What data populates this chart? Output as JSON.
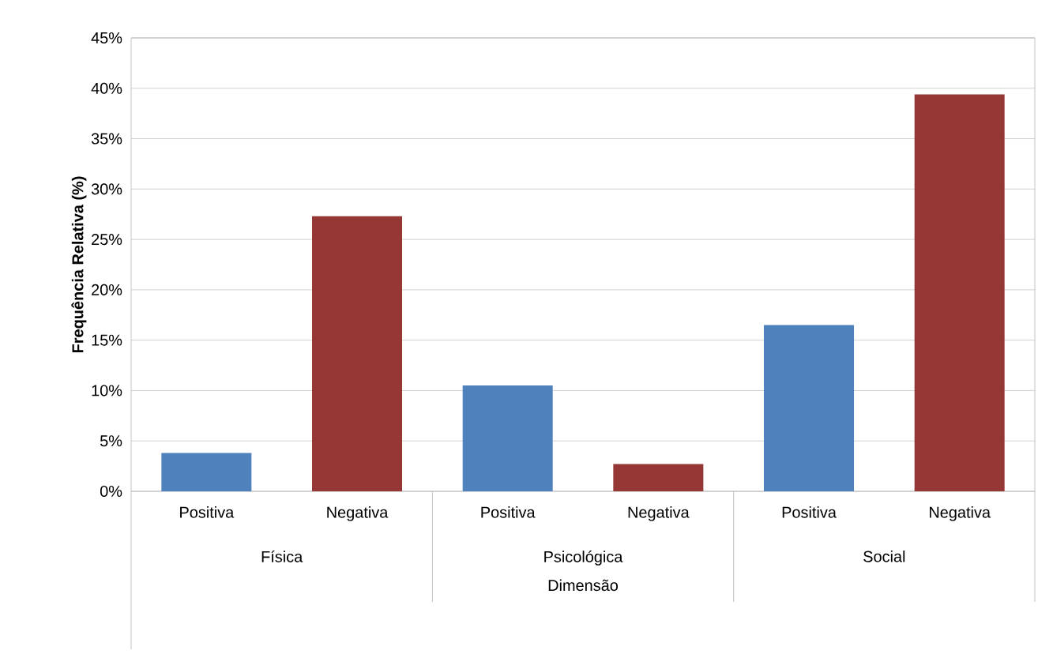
{
  "chart_data": {
    "type": "bar",
    "xlabel": "Dimensão",
    "ylabel": "Frequência Relativa (%)",
    "categories": [
      "Positiva",
      "Negativa",
      "Positiva",
      "Negativa",
      "Positiva",
      "Negativa"
    ],
    "values": [
      3.8,
      27.3,
      10.5,
      2.7,
      16.5,
      39.4
    ],
    "colors": [
      "#4f81bd",
      "#953735",
      "#4f81bd",
      "#953735",
      "#4f81bd",
      "#953735"
    ],
    "annotations": [
      "Física",
      "Psicológica",
      "Social"
    ],
    "ylim": [
      0,
      45
    ],
    "yticks": [
      {
        "value": 0,
        "label": "0%"
      },
      {
        "value": 5,
        "label": "5%"
      },
      {
        "value": 10,
        "label": "10%"
      },
      {
        "value": 15,
        "label": "15%"
      },
      {
        "value": 20,
        "label": "20%"
      },
      {
        "value": 25,
        "label": "25%"
      },
      {
        "value": 30,
        "label": "30%"
      },
      {
        "value": 35,
        "label": "35%"
      },
      {
        "value": 40,
        "label": "40%"
      },
      {
        "value": 45,
        "label": "45%"
      }
    ],
    "grid": "y"
  }
}
